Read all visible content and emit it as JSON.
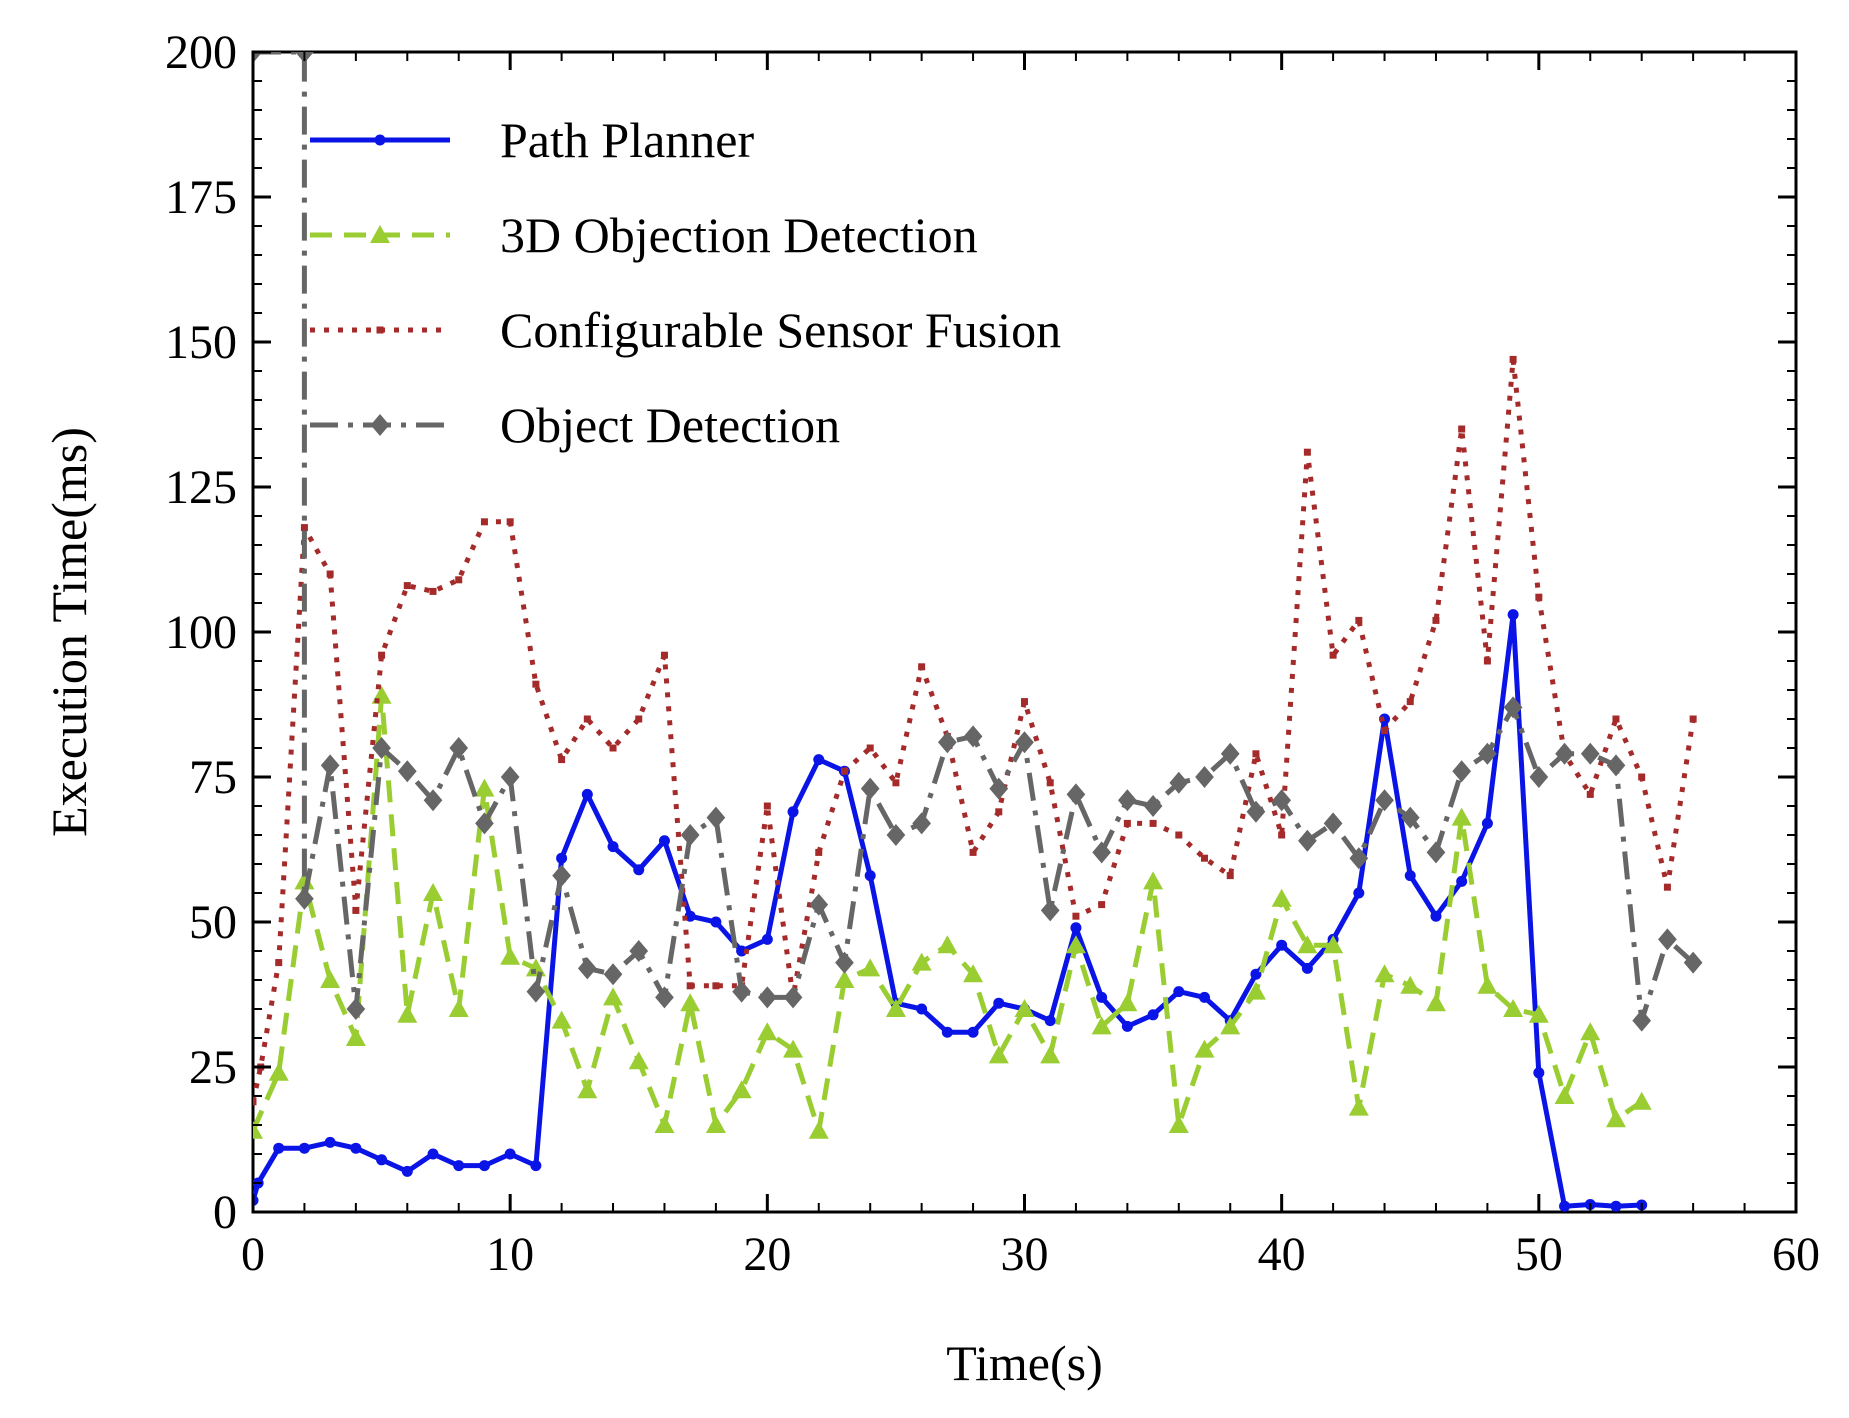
{
  "chart_data": {
    "type": "line",
    "xlabel": "Time(s)",
    "ylabel": "Execution Time(ms)",
    "xlim": [
      0,
      60
    ],
    "ylim": [
      0,
      200
    ],
    "xticks": [
      0,
      10,
      20,
      30,
      40,
      50,
      60
    ],
    "yticks": [
      0,
      25,
      50,
      75,
      100,
      125,
      150,
      175,
      200
    ],
    "grid": false,
    "legend_position": "top-left",
    "series": [
      {
        "name": "Path Planner",
        "color": "#0a14e6",
        "linestyle": "solid",
        "marker": "dot",
        "x": [
          0,
          0.2,
          1,
          2,
          3,
          4,
          5,
          6,
          7,
          8,
          9,
          10,
          11,
          12,
          13,
          14,
          15,
          16,
          17,
          18,
          19,
          20,
          21,
          22,
          23,
          24,
          25,
          26,
          27,
          28,
          29,
          30,
          31,
          32,
          33,
          34,
          35,
          36,
          37,
          38,
          39,
          40,
          41,
          42,
          43,
          44,
          45,
          46,
          47,
          48,
          49,
          50,
          51,
          52,
          53,
          54
        ],
        "y": [
          2,
          5,
          11,
          11,
          12,
          11,
          9,
          7,
          10,
          8,
          8,
          10,
          8,
          61,
          72,
          63,
          59,
          64,
          51,
          50,
          45,
          47,
          69,
          78,
          76,
          58,
          36,
          35,
          31,
          31,
          36,
          35,
          33,
          49,
          37,
          32,
          34,
          38,
          37,
          33,
          41,
          46,
          42,
          47,
          55,
          85,
          58,
          51,
          57,
          67,
          103,
          24,
          1,
          1.3,
          1,
          1.2
        ]
      },
      {
        "name": "3D Objection Detection",
        "color": "#9acd32",
        "linestyle": "dashed",
        "marker": "triangle",
        "x": [
          0,
          1,
          2,
          3,
          4,
          5,
          6,
          7,
          8,
          9,
          10,
          11,
          12,
          13,
          14,
          15,
          16,
          17,
          18,
          19,
          20,
          21,
          22,
          23,
          24,
          25,
          26,
          27,
          28,
          29,
          30,
          31,
          32,
          33,
          34,
          35,
          36,
          37,
          38,
          39,
          40,
          41,
          42,
          43,
          44,
          45,
          46,
          47,
          48,
          49,
          50,
          51,
          52,
          53,
          54
        ],
        "y": [
          14,
          24,
          57,
          40,
          30,
          89,
          34,
          55,
          35,
          73,
          44,
          42,
          33,
          21,
          37,
          26,
          15,
          36,
          15,
          21,
          31,
          28,
          14,
          40,
          42,
          35,
          43,
          46,
          41,
          27,
          35,
          27,
          46,
          32,
          36,
          57,
          15,
          28,
          32,
          38,
          54,
          46,
          46,
          18,
          41,
          39,
          36,
          68,
          39,
          35,
          34,
          20,
          31,
          16,
          19
        ]
      },
      {
        "name": "Configurable Sensor Fusion",
        "color": "#a52a2a",
        "linestyle": "dotted",
        "marker": "small-square",
        "x": [
          0,
          0.3,
          1,
          2,
          3,
          4,
          5,
          6,
          7,
          8,
          9,
          10,
          11,
          12,
          13,
          14,
          15,
          16,
          17,
          18,
          19,
          20,
          21,
          22,
          23,
          24,
          25,
          26,
          27,
          28,
          29,
          30,
          31,
          32,
          33,
          34,
          35,
          36,
          37,
          38,
          39,
          40,
          41,
          42,
          43,
          44,
          45,
          46,
          47,
          48,
          49,
          50,
          51,
          52,
          53,
          54,
          55,
          56
        ],
        "y": [
          19,
          25,
          43,
          118,
          110,
          52,
          96,
          108,
          107,
          109,
          119,
          119,
          91,
          78,
          85,
          80,
          85,
          96,
          39,
          39,
          39,
          70,
          37,
          62,
          76,
          80,
          74,
          94,
          82,
          62,
          69,
          88,
          74,
          51,
          53,
          67,
          67,
          65,
          61,
          58,
          79,
          65,
          131,
          96,
          102,
          83,
          88,
          102,
          135,
          95,
          147,
          106,
          79,
          72,
          85,
          75,
          56,
          85
        ]
      },
      {
        "name": "Object Detection",
        "color": "#666666",
        "linestyle": "dashdot",
        "marker": "diamond",
        "x": [
          0,
          2,
          2,
          3,
          4,
          5,
          6,
          7,
          8,
          9,
          10,
          11,
          12,
          13,
          14,
          15,
          16,
          17,
          18,
          19,
          20,
          21,
          22,
          23,
          24,
          25,
          26,
          27,
          28,
          29,
          30,
          31,
          32,
          33,
          34,
          35,
          36,
          37,
          38,
          39,
          40,
          41,
          42,
          43,
          44,
          45,
          46,
          47,
          48,
          49,
          50,
          51,
          52,
          53,
          54,
          55,
          56
        ],
        "y": [
          200,
          200,
          54,
          77,
          35,
          80,
          76,
          71,
          80,
          67,
          75,
          38,
          58,
          42,
          41,
          45,
          37,
          65,
          68,
          38,
          37,
          37,
          53,
          43,
          73,
          65,
          67,
          81,
          82,
          73,
          81,
          52,
          72,
          62,
          71,
          70,
          74,
          75,
          79,
          69,
          71,
          64,
          67,
          61,
          71,
          68,
          62,
          76,
          79,
          87,
          75,
          79,
          79,
          77,
          33,
          47,
          43
        ]
      }
    ]
  }
}
